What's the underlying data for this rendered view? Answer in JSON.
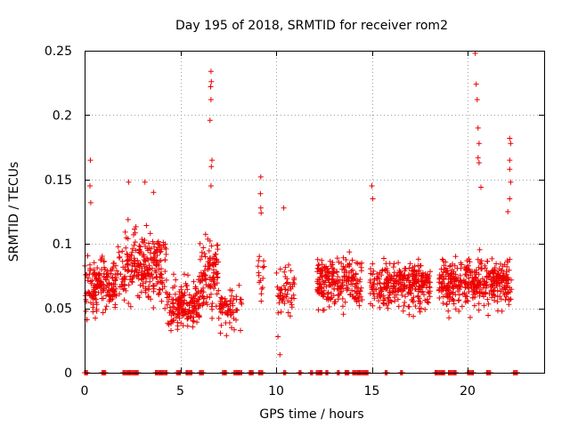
{
  "chart_data": {
    "type": "scatter",
    "title": "Day 195 of 2018, SRMTID for receiver rom2",
    "xlabel": "GPS time / hours",
    "ylabel": "SRMTID / TECUs",
    "xlim": [
      0,
      24
    ],
    "ylim": [
      0,
      0.25
    ],
    "xticks": [
      0,
      5,
      10,
      15,
      20
    ],
    "xtick_labels": [
      "0",
      "5",
      "10",
      "15",
      "20"
    ],
    "yticks": [
      0,
      0.05,
      0.1,
      0.15,
      0.2,
      0.25
    ],
    "ytick_labels": [
      "0",
      "0.05",
      "0.1",
      "0.15",
      "0.2",
      "0.25"
    ],
    "grid": true,
    "marker": "+",
    "marker_color": "#ee0000",
    "clusters": [
      {
        "x_range": [
          0.0,
          1.6
        ],
        "y_center": 0.068,
        "y_spread": 0.022,
        "n": 170
      },
      {
        "x_range": [
          1.6,
          2.1
        ],
        "y_center": 0.075,
        "y_spread": 0.02,
        "n": 30
      },
      {
        "x_range": [
          2.1,
          4.3
        ],
        "y_center": 0.082,
        "y_spread": 0.03,
        "n": 230
      },
      {
        "x_range": [
          4.3,
          6.0
        ],
        "y_center": 0.052,
        "y_spread": 0.018,
        "n": 170
      },
      {
        "x_range": [
          6.0,
          7.0
        ],
        "y_center": 0.075,
        "y_spread": 0.028,
        "n": 110
      },
      {
        "x_range": [
          7.0,
          8.2
        ],
        "y_center": 0.05,
        "y_spread": 0.018,
        "n": 70
      },
      {
        "x_range": [
          9.0,
          9.4
        ],
        "y_center": 0.07,
        "y_spread": 0.02,
        "n": 15
      },
      {
        "x_range": [
          10.0,
          11.0
        ],
        "y_center": 0.065,
        "y_spread": 0.018,
        "n": 55
      },
      {
        "x_range": [
          12.1,
          14.5
        ],
        "y_center": 0.07,
        "y_spread": 0.02,
        "n": 230
      },
      {
        "x_range": [
          14.9,
          18.1
        ],
        "y_center": 0.068,
        "y_spread": 0.02,
        "n": 320
      },
      {
        "x_range": [
          18.5,
          20.5
        ],
        "y_center": 0.068,
        "y_spread": 0.02,
        "n": 220
      },
      {
        "x_range": [
          20.5,
          22.3
        ],
        "y_center": 0.07,
        "y_spread": 0.02,
        "n": 180
      }
    ],
    "outliers": [
      {
        "x": 0.3,
        "y": 0.165
      },
      {
        "x": 0.28,
        "y": 0.145
      },
      {
        "x": 0.32,
        "y": 0.132
      },
      {
        "x": 3.15,
        "y": 0.148
      },
      {
        "x": 3.6,
        "y": 0.14
      },
      {
        "x": 2.3,
        "y": 0.148
      },
      {
        "x": 6.6,
        "y": 0.234
      },
      {
        "x": 6.62,
        "y": 0.226
      },
      {
        "x": 6.58,
        "y": 0.222
      },
      {
        "x": 6.6,
        "y": 0.212
      },
      {
        "x": 6.55,
        "y": 0.196
      },
      {
        "x": 6.65,
        "y": 0.165
      },
      {
        "x": 6.62,
        "y": 0.16
      },
      {
        "x": 6.6,
        "y": 0.145
      },
      {
        "x": 9.2,
        "y": 0.152
      },
      {
        "x": 9.18,
        "y": 0.139
      },
      {
        "x": 9.2,
        "y": 0.128
      },
      {
        "x": 9.22,
        "y": 0.124
      },
      {
        "x": 10.4,
        "y": 0.128
      },
      {
        "x": 10.2,
        "y": 0.014
      },
      {
        "x": 10.1,
        "y": 0.028
      },
      {
        "x": 15.0,
        "y": 0.145
      },
      {
        "x": 15.05,
        "y": 0.135
      },
      {
        "x": 20.4,
        "y": 0.248
      },
      {
        "x": 20.45,
        "y": 0.224
      },
      {
        "x": 20.5,
        "y": 0.212
      },
      {
        "x": 20.55,
        "y": 0.19
      },
      {
        "x": 20.6,
        "y": 0.178
      },
      {
        "x": 20.55,
        "y": 0.167
      },
      {
        "x": 20.6,
        "y": 0.163
      },
      {
        "x": 20.7,
        "y": 0.144
      },
      {
        "x": 22.2,
        "y": 0.182
      },
      {
        "x": 22.25,
        "y": 0.178
      },
      {
        "x": 22.2,
        "y": 0.165
      },
      {
        "x": 22.2,
        "y": 0.158
      },
      {
        "x": 22.25,
        "y": 0.148
      },
      {
        "x": 22.2,
        "y": 0.135
      },
      {
        "x": 22.1,
        "y": 0.125
      }
    ],
    "zero_segments": [
      [
        0.0,
        0.15
      ],
      [
        0.9,
        1.1
      ],
      [
        2.0,
        2.8
      ],
      [
        3.7,
        4.3
      ],
      [
        4.8,
        5.0
      ],
      [
        5.3,
        5.6
      ],
      [
        6.0,
        6.2
      ],
      [
        7.2,
        7.4
      ],
      [
        7.8,
        8.2
      ],
      [
        8.6,
        8.8
      ],
      [
        9.1,
        9.3
      ],
      [
        10.4,
        10.5
      ],
      [
        11.2,
        11.3
      ],
      [
        11.8,
        11.9
      ],
      [
        12.1,
        12.4
      ],
      [
        12.6,
        12.7
      ],
      [
        13.2,
        13.3
      ],
      [
        13.6,
        13.8
      ],
      [
        14.0,
        14.8
      ],
      [
        15.7,
        15.8
      ],
      [
        16.5,
        16.6
      ],
      [
        18.3,
        18.8
      ],
      [
        19.0,
        19.4
      ],
      [
        20.0,
        20.3
      ],
      [
        21.0,
        21.2
      ],
      [
        22.4,
        22.6
      ]
    ]
  }
}
